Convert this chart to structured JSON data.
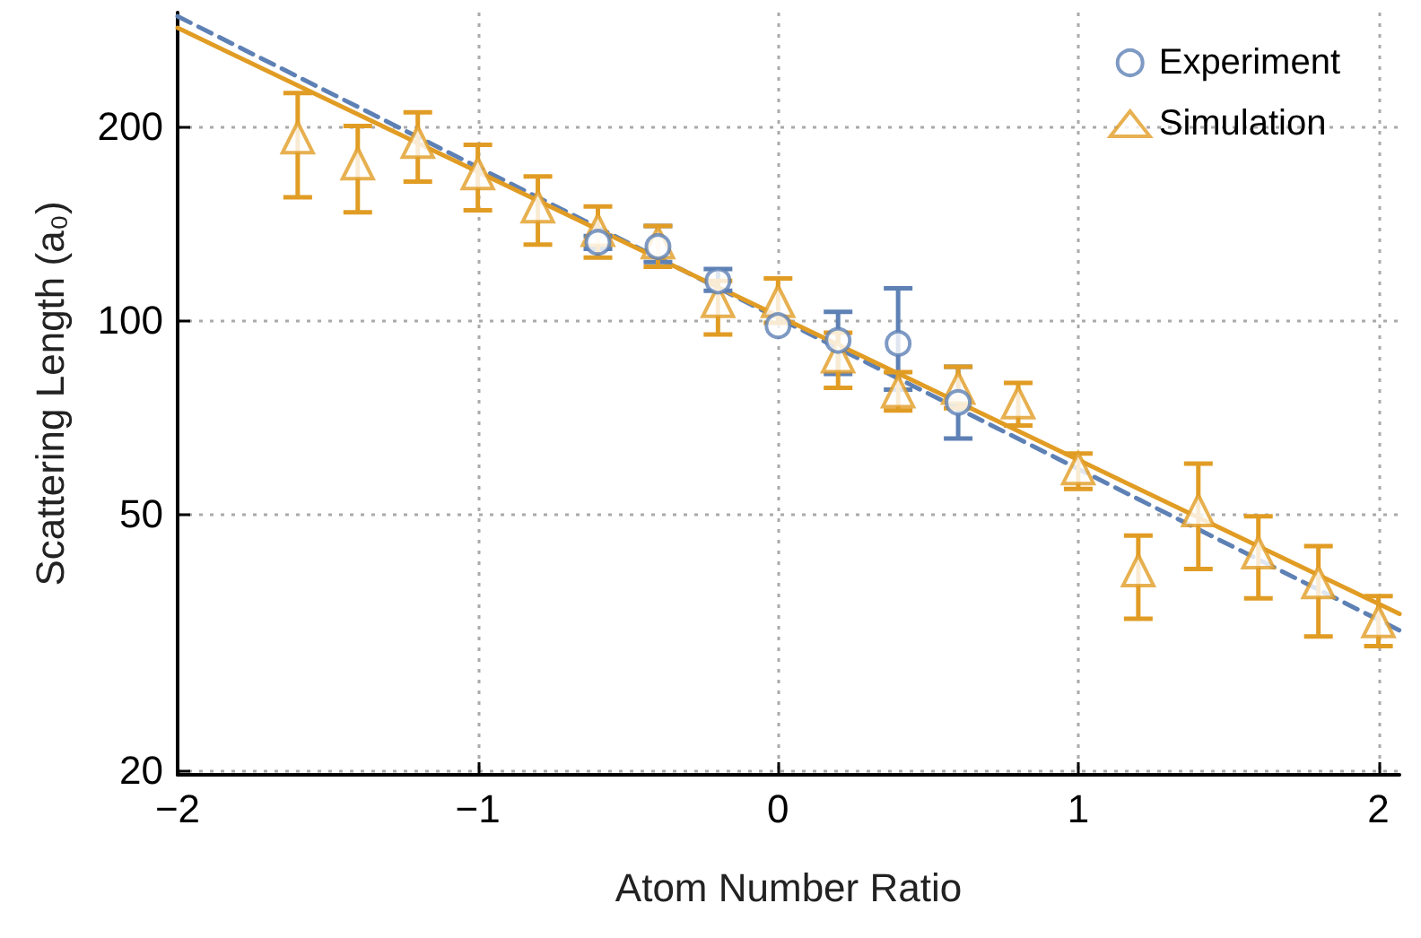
{
  "chart_data": {
    "type": "scatter",
    "xlabel": "Atom Number Ratio",
    "ylabel": "Scattering Length (a₀)",
    "log": "y",
    "xlim": [
      -2,
      2.07
    ],
    "ylim": [
      19.7,
      300
    ],
    "xticks": [
      {
        "value": -2,
        "label": "−2"
      },
      {
        "value": -1,
        "label": "−1"
      },
      0,
      1,
      2
    ],
    "yticks": [
      20,
      50,
      100,
      200
    ],
    "grid": true,
    "legend": "top right",
    "series": [
      {
        "name": "Experiment",
        "marker": "circle",
        "color": "#5e81b5",
        "x": [
          -0.6,
          -0.4,
          -0.2,
          0,
          0.2,
          0.4,
          0.6
        ],
        "values": [
          132,
          130,
          115,
          98,
          93,
          92,
          74.5
        ],
        "errors": [
          [
            129,
            135
          ],
          [
            123,
            140
          ],
          [
            111,
            120
          ],
          null,
          [
            82.5,
            103
          ],
          [
            78,
            112
          ],
          [
            65.5,
            84.6
          ]
        ]
      },
      {
        "type": "line",
        "marker": "none",
        "line_style": "dashed",
        "color": "#5e81b5",
        "x": [
          -2,
          2.07
        ],
        "values": [
          296,
          33
        ]
      },
      {
        "name": "Simulation",
        "marker": "triangle",
        "color": "#e19c24",
        "x": [
          -1.6,
          -1.4,
          -1.2,
          -1.0,
          -0.8,
          -0.6,
          -0.4,
          -0.2,
          0,
          0.2,
          0.4,
          0.6,
          0.8,
          1.0,
          1.2,
          1.4,
          1.6,
          1.8,
          2.0
        ],
        "values": [
          192,
          175,
          189,
          169,
          150,
          138,
          132,
          107,
          107,
          87.8,
          77.5,
          78.5,
          74.5,
          58.9,
          40.9,
          50.7,
          43.6,
          39.2,
          34.1
        ],
        "errors": [
          [
            155,
            225
          ],
          [
            147,
            200
          ],
          [
            164,
            210
          ],
          [
            148,
            187
          ],
          [
            131,
            167
          ],
          [
            125,
            150
          ],
          [
            121,
            140
          ],
          [
            95,
            115
          ],
          [
            99,
            116
          ],
          [
            78.5,
            95.6
          ],
          [
            72.4,
            83
          ],
          [
            73,
            84.6
          ],
          [
            68.6,
            79.9
          ],
          [
            54.7,
            62.1
          ],
          [
            34.4,
            46.3
          ],
          [
            41.1,
            59.9
          ],
          [
            37,
            49.6
          ],
          [
            32.3,
            44.6
          ],
          [
            31.2,
            37.3
          ]
        ]
      },
      {
        "type": "line",
        "marker": "none",
        "line_style": "solid",
        "color": "#e19c24",
        "x": [
          -2,
          2.07
        ],
        "values": [
          284,
          35
        ]
      }
    ]
  }
}
